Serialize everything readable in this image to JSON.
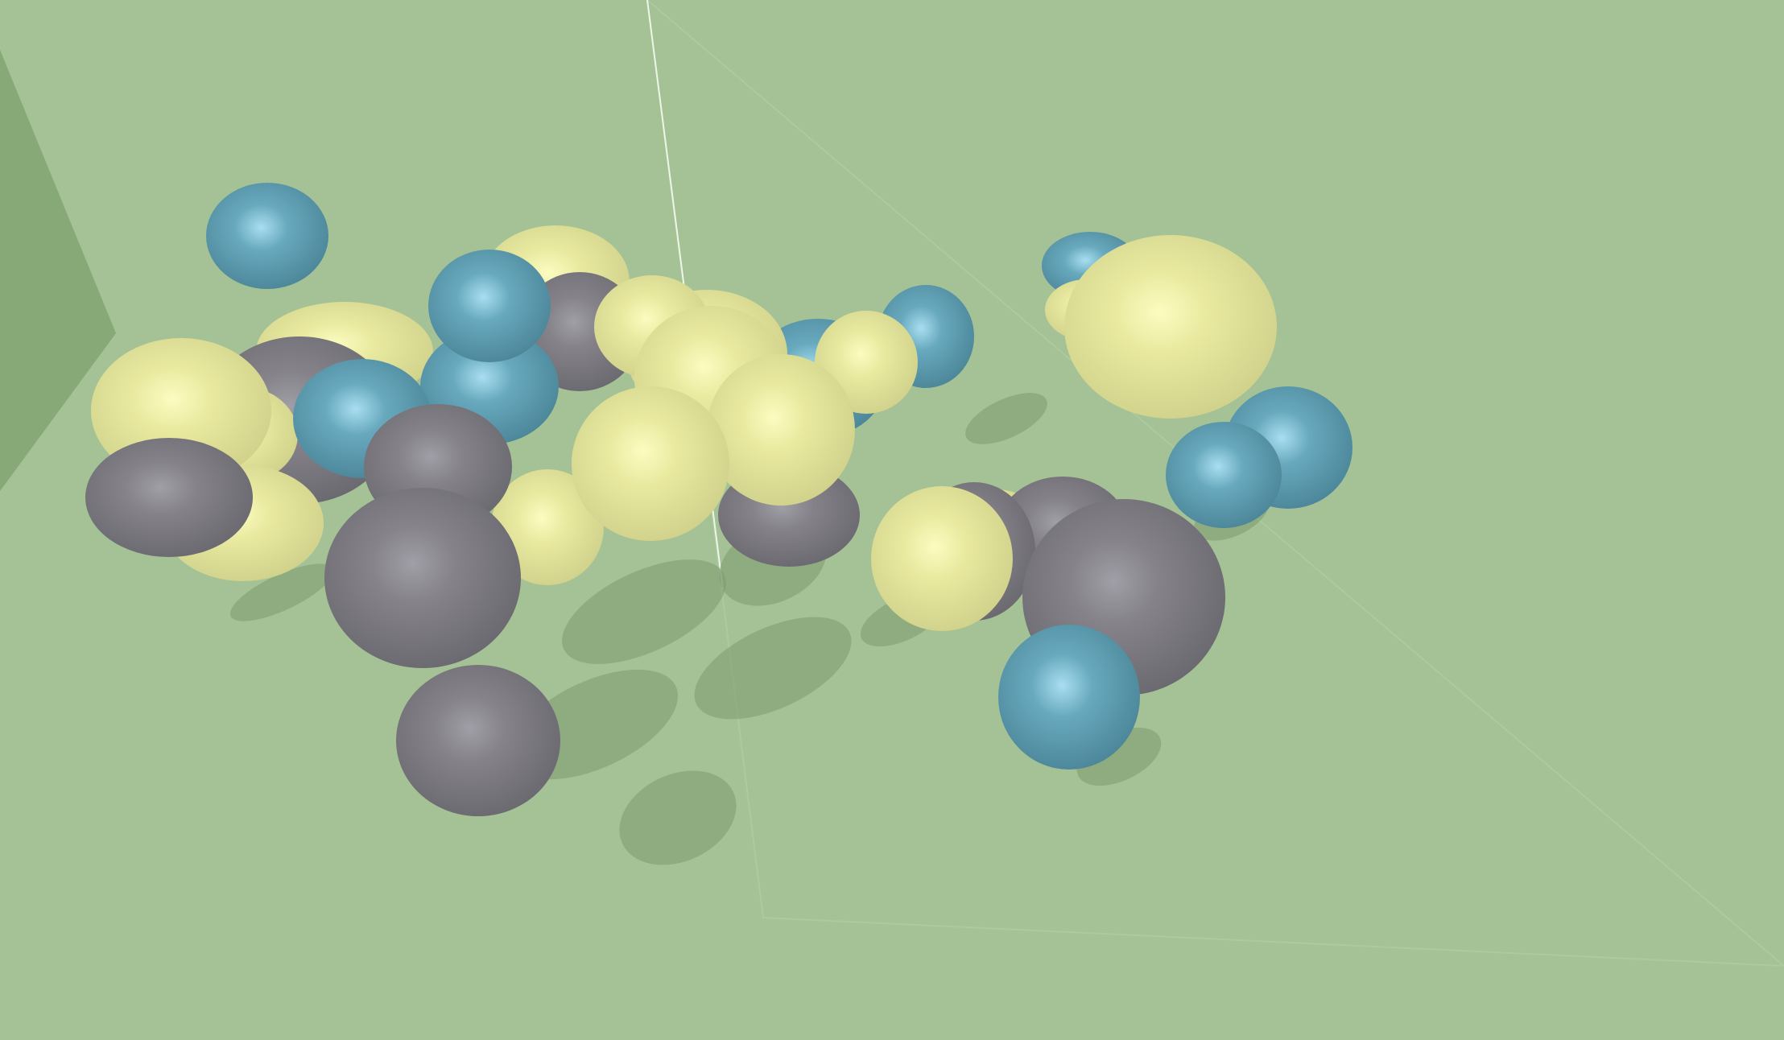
{
  "scene": {
    "background_color": "#a4c295",
    "wall_color": "#87a877",
    "shadow_color": "#7d9a6f",
    "line_color": "#e6efe0"
  },
  "ball_colors": {
    "yellow": "#e6e69a",
    "blue": "#5fa0b5",
    "gray": "#7e7c83"
  },
  "balls": [
    {
      "color": "blue"
    },
    {
      "color": "yellow"
    },
    {
      "color": "yellow"
    },
    {
      "color": "gray"
    },
    {
      "color": "blue"
    },
    {
      "color": "yellow"
    },
    {
      "color": "blue"
    },
    {
      "color": "blue"
    },
    {
      "color": "gray"
    },
    {
      "color": "yellow"
    },
    {
      "color": "blue"
    },
    {
      "color": "yellow"
    },
    {
      "color": "yellow"
    },
    {
      "color": "gray"
    },
    {
      "color": "yellow"
    },
    {
      "color": "gray"
    },
    {
      "color": "gray"
    },
    {
      "color": "blue"
    },
    {
      "color": "blue"
    },
    {
      "color": "yellow"
    },
    {
      "color": "blue"
    },
    {
      "color": "yellow"
    },
    {
      "color": "blue"
    },
    {
      "color": "blue"
    },
    {
      "color": "yellow"
    },
    {
      "color": "yellow"
    },
    {
      "color": "yellow"
    },
    {
      "color": "yellow"
    },
    {
      "color": "yellow"
    },
    {
      "color": "yellow"
    },
    {
      "color": "gray"
    },
    {
      "color": "gray"
    },
    {
      "color": "yellow"
    },
    {
      "color": "gray"
    },
    {
      "color": "gray"
    },
    {
      "color": "gray"
    },
    {
      "color": "blue"
    }
  ]
}
